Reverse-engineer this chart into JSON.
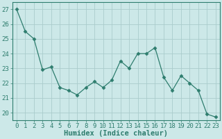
{
  "x": [
    0,
    1,
    2,
    3,
    4,
    5,
    6,
    7,
    8,
    9,
    10,
    11,
    12,
    13,
    14,
    15,
    16,
    17,
    18,
    19,
    20,
    21,
    22,
    23
  ],
  "y": [
    27.0,
    25.5,
    25.0,
    22.9,
    23.1,
    21.7,
    21.5,
    21.2,
    21.7,
    22.1,
    21.7,
    22.2,
    23.5,
    23.0,
    24.0,
    24.0,
    24.4,
    22.4,
    21.5,
    22.5,
    22.0,
    21.5,
    19.9,
    19.7
  ],
  "line_color": "#2e7d6e",
  "marker": "D",
  "marker_size": 2.5,
  "bg_color": "#cce8e8",
  "grid_color": "#aacccc",
  "xlabel": "Humidex (Indice chaleur)",
  "ylim": [
    19.5,
    27.5
  ],
  "xlim": [
    -0.5,
    23.5
  ],
  "yticks": [
    20,
    21,
    22,
    23,
    24,
    25,
    26,
    27
  ],
  "xticks": [
    0,
    1,
    2,
    3,
    4,
    5,
    6,
    7,
    8,
    9,
    10,
    11,
    12,
    13,
    14,
    15,
    16,
    17,
    18,
    19,
    20,
    21,
    22,
    23
  ],
  "tick_label_size": 6.5,
  "xlabel_size": 7.5,
  "spine_color": "#2e7d6e"
}
